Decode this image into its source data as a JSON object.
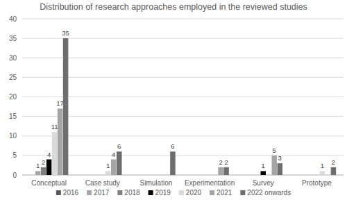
{
  "chart_data": {
    "type": "bar",
    "title": "Distribution of research approaches employed in the reviewed studies",
    "categories": [
      "Conceptual",
      "Case study",
      "Simulation",
      "Experimentation",
      "Survey",
      "Prototype"
    ],
    "series": [
      {
        "name": "2016",
        "color": "#595959",
        "values": [
          null,
          null,
          null,
          null,
          null,
          null
        ]
      },
      {
        "name": "2017",
        "color": "#a6a6a6",
        "values": [
          1,
          null,
          null,
          null,
          null,
          null
        ]
      },
      {
        "name": "2018",
        "color": "#7f7f7f",
        "values": [
          2,
          null,
          null,
          null,
          null,
          null
        ]
      },
      {
        "name": "2019",
        "color": "#000000",
        "values": [
          4,
          null,
          null,
          null,
          1,
          null
        ]
      },
      {
        "name": "2020",
        "color": "#d9d9d9",
        "values": [
          11,
          1,
          null,
          null,
          null,
          1
        ]
      },
      {
        "name": "2021",
        "color": "#a5a5a5",
        "values": [
          17,
          4,
          null,
          2,
          5,
          null
        ]
      },
      {
        "name": "2022 onwards",
        "color": "#6e6e6e",
        "values": [
          35,
          6,
          6,
          2,
          3,
          2
        ]
      }
    ],
    "ylim": [
      0,
      40
    ],
    "yticks": [
      0,
      5,
      10,
      15,
      20,
      25,
      30,
      35,
      40
    ],
    "grid": true,
    "data_labels": true,
    "legend": "bottom"
  }
}
